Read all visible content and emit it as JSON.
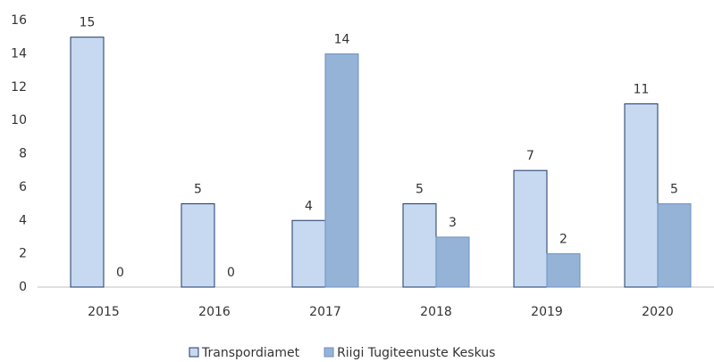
{
  "chart_data": {
    "type": "bar",
    "categories": [
      "2015",
      "2016",
      "2017",
      "2018",
      "2019",
      "2020"
    ],
    "series": [
      {
        "name": "Transpordiamet",
        "color": "#c6d9f1",
        "stroke": "#1f3864",
        "values": [
          15,
          5,
          4,
          5,
          7,
          11
        ]
      },
      {
        "name": "Riigi Tugiteenuste Keskus",
        "color": "#95b3d7",
        "stroke": "#6f8fbf",
        "values": [
          0,
          0,
          14,
          3,
          2,
          5
        ]
      }
    ],
    "ylim": [
      0,
      16
    ],
    "yticks": [
      0,
      2,
      4,
      6,
      8,
      10,
      12,
      14,
      16
    ],
    "grid": false,
    "legend": "bottom"
  }
}
